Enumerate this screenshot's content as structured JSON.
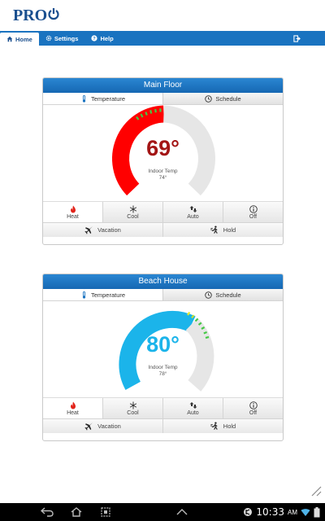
{
  "app": {
    "logo_text": "PRO"
  },
  "nav": {
    "home_label": "Home",
    "settings_label": "Settings",
    "help_label": "Help"
  },
  "thermostats": [
    {
      "name": "Main Floor",
      "tab_temperature": "Temperature",
      "tab_schedule": "Schedule",
      "setpoint": "69°",
      "indoor_label": "Indoor Temp",
      "indoor_value": "74°",
      "mode_color": "#ff0000",
      "modes": [
        "Heat",
        "Cool",
        "Auto",
        "Off"
      ],
      "selected_mode": "Heat",
      "vacation_label": "Vacation",
      "hold_label": "Hold"
    },
    {
      "name": "Beach House",
      "tab_temperature": "Temperature",
      "tab_schedule": "Schedule",
      "setpoint": "80°",
      "indoor_label": "Indoor Temp",
      "indoor_value": "78°",
      "mode_color": "#1bb4ea",
      "modes": [
        "Heat",
        "Cool",
        "Auto",
        "Off"
      ],
      "selected_mode": "Heat",
      "vacation_label": "Vacation",
      "hold_label": "Hold"
    }
  ],
  "system": {
    "clock": "10:33",
    "ampm": "AM"
  },
  "icons": {
    "home": "home-icon",
    "settings": "gear-icon",
    "help": "help-icon",
    "exit": "logout-icon",
    "thermometer": "thermometer-icon",
    "clock": "clock-icon",
    "heat": "flame-icon",
    "cool": "snowflake-icon",
    "auto": "auto-arrows-icon",
    "off": "info-icon",
    "vacation": "airplane-icon",
    "hold": "person-walking-icon"
  }
}
